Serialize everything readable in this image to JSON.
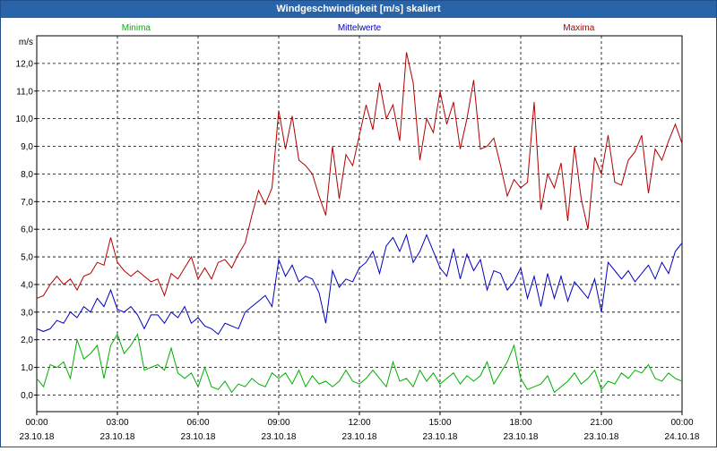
{
  "window": {
    "title": "Windgeschwindigkeit [m/s] skaliert"
  },
  "chart_data": {
    "type": "line",
    "title": "Windgeschwindigkeit [m/s] skaliert",
    "ylabel": "m/s",
    "ylim": [
      -0.6,
      13.0
    ],
    "yticks": [
      "0,0",
      "1,0",
      "2,0",
      "3,0",
      "4,0",
      "5,0",
      "6,0",
      "7,0",
      "8,0",
      "9,0",
      "10,0",
      "11,0",
      "12,0"
    ],
    "xlim": [
      0,
      24
    ],
    "xticks": [
      {
        "time": "00:00",
        "date": "23.10.18"
      },
      {
        "time": "03:00",
        "date": "23.10.18"
      },
      {
        "time": "06:00",
        "date": "23.10.18"
      },
      {
        "time": "09:00",
        "date": "23.10.18"
      },
      {
        "time": "12:00",
        "date": "23.10.18"
      },
      {
        "time": "15:00",
        "date": "23.10.18"
      },
      {
        "time": "18:00",
        "date": "23.10.18"
      },
      {
        "time": "21:00",
        "date": "23.10.18"
      },
      {
        "time": "00:00",
        "date": "24.10.18"
      }
    ],
    "grid": true,
    "legend_position": "top",
    "series": [
      {
        "name": "Minima",
        "color": "#00b000",
        "points": [
          [
            0,
            0.6
          ],
          [
            0.25,
            0.3
          ],
          [
            0.5,
            1.1
          ],
          [
            0.75,
            1.0
          ],
          [
            1,
            1.2
          ],
          [
            1.25,
            0.6
          ],
          [
            1.5,
            2.0
          ],
          [
            1.75,
            1.3
          ],
          [
            2,
            1.5
          ],
          [
            2.25,
            1.8
          ],
          [
            2.5,
            0.6
          ],
          [
            2.75,
            1.8
          ],
          [
            3,
            2.2
          ],
          [
            3.25,
            1.5
          ],
          [
            3.5,
            1.8
          ],
          [
            3.75,
            2.2
          ],
          [
            4,
            0.9
          ],
          [
            4.25,
            1.0
          ],
          [
            4.5,
            1.1
          ],
          [
            4.75,
            0.9
          ],
          [
            5,
            1.7
          ],
          [
            5.25,
            0.8
          ],
          [
            5.5,
            0.6
          ],
          [
            5.75,
            0.8
          ],
          [
            6,
            0.3
          ],
          [
            6.25,
            1.0
          ],
          [
            6.5,
            0.3
          ],
          [
            6.75,
            0.2
          ],
          [
            7,
            0.5
          ],
          [
            7.25,
            0.1
          ],
          [
            7.5,
            0.4
          ],
          [
            7.75,
            0.3
          ],
          [
            8,
            0.6
          ],
          [
            8.25,
            0.4
          ],
          [
            8.5,
            0.3
          ],
          [
            8.75,
            0.8
          ],
          [
            9,
            0.6
          ],
          [
            9.25,
            0.8
          ],
          [
            9.5,
            0.4
          ],
          [
            9.75,
            0.9
          ],
          [
            10,
            0.3
          ],
          [
            10.25,
            0.7
          ],
          [
            10.5,
            0.4
          ],
          [
            10.75,
            0.5
          ],
          [
            11,
            0.3
          ],
          [
            11.25,
            0.5
          ],
          [
            11.5,
            0.9
          ],
          [
            11.75,
            0.5
          ],
          [
            12,
            0.4
          ],
          [
            12.25,
            0.6
          ],
          [
            12.5,
            0.9
          ],
          [
            12.75,
            0.6
          ],
          [
            13,
            0.3
          ],
          [
            13.25,
            1.2
          ],
          [
            13.5,
            0.5
          ],
          [
            13.75,
            0.6
          ],
          [
            14,
            0.3
          ],
          [
            14.25,
            0.9
          ],
          [
            14.5,
            0.5
          ],
          [
            14.75,
            0.8
          ],
          [
            15,
            0.4
          ],
          [
            15.25,
            0.6
          ],
          [
            15.5,
            0.8
          ],
          [
            15.75,
            0.4
          ],
          [
            16,
            0.7
          ],
          [
            16.25,
            0.5
          ],
          [
            16.5,
            0.7
          ],
          [
            16.75,
            1.2
          ],
          [
            17,
            0.4
          ],
          [
            17.25,
            0.8
          ],
          [
            17.5,
            1.2
          ],
          [
            17.75,
            1.8
          ],
          [
            18,
            0.6
          ],
          [
            18.25,
            0.2
          ],
          [
            18.5,
            0.3
          ],
          [
            18.75,
            0.4
          ],
          [
            19,
            0.7
          ],
          [
            19.25,
            0.1
          ],
          [
            19.5,
            0.3
          ],
          [
            19.75,
            0.5
          ],
          [
            20,
            0.8
          ],
          [
            20.25,
            0.4
          ],
          [
            20.5,
            0.6
          ],
          [
            20.75,
            0.9
          ],
          [
            21,
            0.2
          ],
          [
            21.25,
            0.5
          ],
          [
            21.5,
            0.4
          ],
          [
            21.75,
            0.8
          ],
          [
            22,
            0.6
          ],
          [
            22.25,
            0.9
          ],
          [
            22.5,
            0.8
          ],
          [
            22.75,
            1.1
          ],
          [
            23,
            0.6
          ],
          [
            23.25,
            0.5
          ],
          [
            23.5,
            0.8
          ],
          [
            23.75,
            0.6
          ],
          [
            24,
            0.5
          ]
        ]
      },
      {
        "name": "Mittelwerte",
        "color": "#0000c0",
        "points": [
          [
            0,
            2.4
          ],
          [
            0.25,
            2.3
          ],
          [
            0.5,
            2.4
          ],
          [
            0.75,
            2.7
          ],
          [
            1,
            2.6
          ],
          [
            1.25,
            3.0
          ],
          [
            1.5,
            2.8
          ],
          [
            1.75,
            3.2
          ],
          [
            2,
            3.0
          ],
          [
            2.25,
            3.5
          ],
          [
            2.5,
            3.2
          ],
          [
            2.75,
            3.8
          ],
          [
            3,
            3.1
          ],
          [
            3.25,
            3.0
          ],
          [
            3.5,
            3.2
          ],
          [
            3.75,
            2.9
          ],
          [
            4,
            2.4
          ],
          [
            4.25,
            2.9
          ],
          [
            4.5,
            2.9
          ],
          [
            4.75,
            2.6
          ],
          [
            5,
            3.0
          ],
          [
            5.25,
            2.8
          ],
          [
            5.5,
            3.2
          ],
          [
            5.75,
            2.6
          ],
          [
            6,
            2.8
          ],
          [
            6.25,
            2.5
          ],
          [
            6.5,
            2.4
          ],
          [
            6.75,
            2.2
          ],
          [
            7,
            2.6
          ],
          [
            7.25,
            2.5
          ],
          [
            7.5,
            2.4
          ],
          [
            7.75,
            3.0
          ],
          [
            8,
            3.2
          ],
          [
            8.25,
            3.4
          ],
          [
            8.5,
            3.6
          ],
          [
            8.75,
            3.2
          ],
          [
            9,
            4.9
          ],
          [
            9.25,
            4.3
          ],
          [
            9.5,
            4.7
          ],
          [
            9.75,
            4.1
          ],
          [
            10,
            4.3
          ],
          [
            10.25,
            4.2
          ],
          [
            10.5,
            3.7
          ],
          [
            10.75,
            2.6
          ],
          [
            11,
            4.5
          ],
          [
            11.25,
            3.9
          ],
          [
            11.5,
            4.2
          ],
          [
            11.75,
            4.1
          ],
          [
            12,
            4.6
          ],
          [
            12.25,
            4.8
          ],
          [
            12.5,
            5.2
          ],
          [
            12.75,
            4.4
          ],
          [
            13,
            5.4
          ],
          [
            13.25,
            5.7
          ],
          [
            13.5,
            5.2
          ],
          [
            13.75,
            5.8
          ],
          [
            14,
            4.8
          ],
          [
            14.25,
            5.2
          ],
          [
            14.5,
            5.8
          ],
          [
            14.75,
            5.2
          ],
          [
            15,
            4.6
          ],
          [
            15.25,
            4.3
          ],
          [
            15.5,
            5.3
          ],
          [
            15.75,
            4.2
          ],
          [
            16,
            5.1
          ],
          [
            16.25,
            4.5
          ],
          [
            16.5,
            4.9
          ],
          [
            16.75,
            3.8
          ],
          [
            17,
            4.5
          ],
          [
            17.25,
            4.4
          ],
          [
            17.5,
            3.8
          ],
          [
            17.75,
            4.1
          ],
          [
            18,
            4.6
          ],
          [
            18.25,
            3.5
          ],
          [
            18.5,
            4.3
          ],
          [
            18.75,
            3.2
          ],
          [
            19,
            4.4
          ],
          [
            19.25,
            3.5
          ],
          [
            19.5,
            4.3
          ],
          [
            19.75,
            3.4
          ],
          [
            20,
            4.1
          ],
          [
            20.25,
            3.8
          ],
          [
            20.5,
            3.5
          ],
          [
            20.75,
            4.2
          ],
          [
            21,
            3.0
          ],
          [
            21.25,
            4.8
          ],
          [
            21.5,
            4.5
          ],
          [
            21.75,
            4.2
          ],
          [
            22,
            4.5
          ],
          [
            22.25,
            4.1
          ],
          [
            22.5,
            4.4
          ],
          [
            22.75,
            4.7
          ],
          [
            23,
            4.2
          ],
          [
            23.25,
            4.8
          ],
          [
            23.5,
            4.4
          ],
          [
            23.75,
            5.2
          ],
          [
            24,
            5.5
          ]
        ]
      },
      {
        "name": "Maxima",
        "color": "#b00000",
        "points": [
          [
            0,
            3.5
          ],
          [
            0.25,
            3.6
          ],
          [
            0.5,
            4.0
          ],
          [
            0.75,
            4.3
          ],
          [
            1,
            4.0
          ],
          [
            1.25,
            4.2
          ],
          [
            1.5,
            3.8
          ],
          [
            1.75,
            4.3
          ],
          [
            2,
            4.4
          ],
          [
            2.25,
            4.8
          ],
          [
            2.5,
            4.7
          ],
          [
            2.75,
            5.7
          ],
          [
            3,
            4.8
          ],
          [
            3.25,
            4.5
          ],
          [
            3.5,
            4.3
          ],
          [
            3.75,
            4.5
          ],
          [
            4,
            4.3
          ],
          [
            4.25,
            4.1
          ],
          [
            4.5,
            4.2
          ],
          [
            4.75,
            3.6
          ],
          [
            5,
            4.4
          ],
          [
            5.25,
            4.2
          ],
          [
            5.5,
            4.6
          ],
          [
            5.75,
            5.0
          ],
          [
            6,
            4.2
          ],
          [
            6.25,
            4.6
          ],
          [
            6.5,
            4.2
          ],
          [
            6.75,
            4.8
          ],
          [
            7,
            4.9
          ],
          [
            7.25,
            4.6
          ],
          [
            7.5,
            5.1
          ],
          [
            7.75,
            5.5
          ],
          [
            8,
            6.5
          ],
          [
            8.25,
            7.4
          ],
          [
            8.5,
            6.9
          ],
          [
            8.75,
            7.5
          ],
          [
            9,
            10.3
          ],
          [
            9.25,
            8.9
          ],
          [
            9.5,
            10.1
          ],
          [
            9.75,
            8.5
          ],
          [
            10,
            8.3
          ],
          [
            10.25,
            8.0
          ],
          [
            10.5,
            7.2
          ],
          [
            10.75,
            6.5
          ],
          [
            11,
            9.0
          ],
          [
            11.25,
            7.1
          ],
          [
            11.5,
            8.7
          ],
          [
            11.75,
            8.3
          ],
          [
            12,
            9.4
          ],
          [
            12.25,
            10.5
          ],
          [
            12.5,
            9.6
          ],
          [
            12.75,
            11.3
          ],
          [
            13,
            10.0
          ],
          [
            13.25,
            10.5
          ],
          [
            13.5,
            9.2
          ],
          [
            13.75,
            12.4
          ],
          [
            14,
            11.3
          ],
          [
            14.25,
            8.5
          ],
          [
            14.5,
            10.0
          ],
          [
            14.75,
            9.5
          ],
          [
            15,
            11.0
          ],
          [
            15.25,
            9.8
          ],
          [
            15.5,
            10.6
          ],
          [
            15.75,
            8.9
          ],
          [
            16,
            10.0
          ],
          [
            16.25,
            11.4
          ],
          [
            16.5,
            8.9
          ],
          [
            16.75,
            9.0
          ],
          [
            17,
            9.3
          ],
          [
            17.25,
            8.3
          ],
          [
            17.5,
            7.2
          ],
          [
            17.75,
            7.8
          ],
          [
            18,
            7.5
          ],
          [
            18.25,
            7.7
          ],
          [
            18.5,
            10.6
          ],
          [
            18.75,
            6.7
          ],
          [
            19,
            8.0
          ],
          [
            19.25,
            7.5
          ],
          [
            19.5,
            8.4
          ],
          [
            19.75,
            6.3
          ],
          [
            20,
            9.0
          ],
          [
            20.25,
            7.1
          ],
          [
            20.5,
            6.0
          ],
          [
            20.75,
            8.6
          ],
          [
            21,
            8.0
          ],
          [
            21.25,
            9.4
          ],
          [
            21.5,
            7.7
          ],
          [
            21.75,
            7.6
          ],
          [
            22,
            8.5
          ],
          [
            22.25,
            8.8
          ],
          [
            22.5,
            9.4
          ],
          [
            22.75,
            7.3
          ],
          [
            23,
            8.9
          ],
          [
            23.25,
            8.5
          ],
          [
            23.5,
            9.2
          ],
          [
            23.75,
            9.8
          ],
          [
            24,
            9.1
          ]
        ]
      }
    ]
  }
}
